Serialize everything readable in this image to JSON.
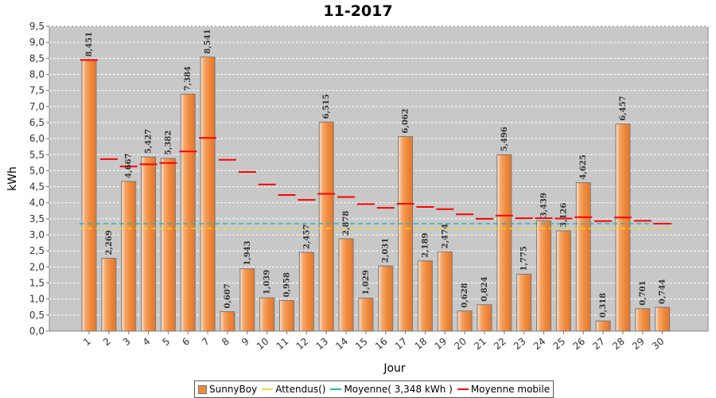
{
  "chart_data": {
    "type": "bar",
    "title": "11-2017",
    "xlabel": "Jour",
    "ylabel": "kWh",
    "ylim": [
      0,
      9.5
    ],
    "ytick_step": 0.5,
    "grid": true,
    "legend_position": "bottom",
    "categories": [
      "1",
      "2",
      "3",
      "4",
      "5",
      "6",
      "7",
      "8",
      "9",
      "10",
      "11",
      "12",
      "13",
      "14",
      "15",
      "16",
      "17",
      "18",
      "19",
      "20",
      "21",
      "22",
      "23",
      "24",
      "25",
      "26",
      "27",
      "28",
      "29",
      "30"
    ],
    "series": [
      {
        "name": "SunnyBoy",
        "kind": "bar",
        "color": "#f08a3c",
        "values": [
          8.451,
          2.269,
          4.667,
          5.427,
          5.382,
          7.384,
          8.541,
          0.607,
          1.943,
          1.039,
          0.958,
          2.457,
          6.515,
          2.878,
          1.029,
          2.031,
          6.062,
          2.189,
          2.474,
          0.628,
          0.824,
          5.496,
          1.775,
          3.439,
          3.126,
          4.625,
          0.318,
          6.457,
          0.701,
          0.744
        ],
        "labels": [
          "8,451",
          "2,269",
          "4,667",
          "5,427",
          "5,382",
          "7,384",
          "8,541",
          "0,607",
          "1,943",
          "1,039",
          "0,958",
          "2,457",
          "6,515",
          "2,878",
          "1,029",
          "2,031",
          "6,062",
          "2,189",
          "2,474",
          "0,628",
          "0,824",
          "5,496",
          "1,775",
          "3,439",
          "3,126",
          "4,625",
          "0,318",
          "6,457",
          "0,701",
          "0,744"
        ]
      },
      {
        "name": "Attendus()",
        "kind": "hline",
        "color": "#f5d33a",
        "value": 3.2
      },
      {
        "name": "Moyenne( 3,348 kWh )",
        "kind": "hline",
        "color": "#2ab5b5",
        "value": 3.348
      },
      {
        "name": "Moyenne mobile",
        "kind": "marker",
        "color": "#ff0000",
        "values": [
          8.45,
          5.36,
          5.13,
          5.2,
          5.24,
          5.6,
          6.02,
          5.34,
          4.96,
          4.57,
          4.24,
          4.09,
          4.28,
          4.18,
          3.96,
          3.84,
          3.97,
          3.87,
          3.8,
          3.64,
          3.5,
          3.6,
          3.52,
          3.52,
          3.51,
          3.55,
          3.43,
          3.54,
          3.44,
          3.35
        ]
      }
    ],
    "ytick_labels": [
      "0,0",
      "0,5",
      "1,0",
      "1,5",
      "2,0",
      "2,5",
      "3,0",
      "3,5",
      "4,0",
      "4,5",
      "5,0",
      "5,5",
      "6,0",
      "6,5",
      "7,0",
      "7,5",
      "8,0",
      "8,5",
      "9,0",
      "9,5"
    ]
  }
}
